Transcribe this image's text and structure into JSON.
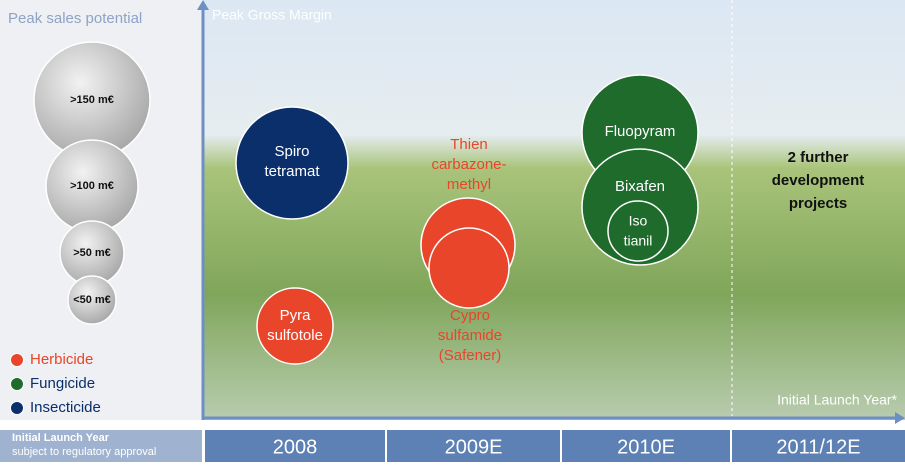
{
  "legend_title": "Peak sales potential",
  "size_legend": [
    ">150 m€",
    ">100 m€",
    ">50 m€",
    "<50 m€"
  ],
  "type_legend": [
    "Herbicide",
    "Fungicide",
    "Insecticide"
  ],
  "y_axis_label": "Peak Gross Margin",
  "x_axis_label": "Initial Launch Year*",
  "footer": {
    "title": "Initial Launch Year",
    "note": "subject to regulatory approval"
  },
  "columns": [
    "2008",
    "2009E",
    "2010E",
    "2011/12E"
  ],
  "products": [
    {
      "lines": [
        "Spiro",
        "tetramat"
      ]
    },
    {
      "lines": [
        "Pyra",
        "sulfotole"
      ]
    },
    {
      "lines": [
        "Thien",
        "carbazone-",
        "methyl"
      ]
    },
    {
      "lines": [
        "Cypro",
        "sulfamide",
        "(Safener)"
      ]
    },
    {
      "lines": [
        "Fluopyram"
      ]
    },
    {
      "lines": [
        "Bixafen"
      ]
    },
    {
      "lines": [
        "Iso",
        "tianil"
      ]
    }
  ],
  "annotation": [
    "2 further",
    "development",
    "projects"
  ]
}
